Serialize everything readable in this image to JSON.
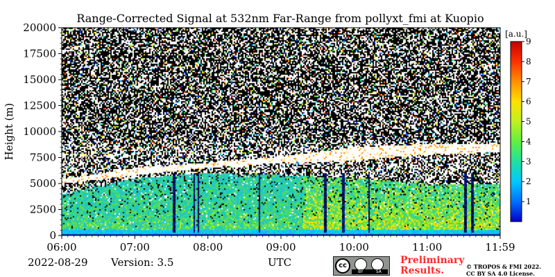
{
  "chart_data": {
    "type": "heatmap",
    "title": "Range-Corrected Signal at 532nm Far-Range from pollyxt_fmi at Kuopio",
    "xlabel": "UTC",
    "ylabel": "Height (m)",
    "x_ticks": [
      "06:00",
      "07:00",
      "08:00",
      "09:00",
      "10:00",
      "11:00",
      "11:59"
    ],
    "y_ticks": [
      0,
      2500,
      5000,
      7500,
      10000,
      12500,
      15000,
      17500,
      20000
    ],
    "ylim": [
      0,
      20000
    ],
    "colorbar": {
      "unit": "[a.u.]",
      "range": [
        0,
        9
      ],
      "ticks": [
        1,
        2,
        3,
        4,
        5,
        6,
        7,
        8,
        9
      ],
      "colors": [
        "#0000c8",
        "#0070ff",
        "#00c8ff",
        "#20e0a0",
        "#60f040",
        "#c0f020",
        "#ffe000",
        "#ff9000",
        "#ff3000",
        "#c80000"
      ]
    },
    "cloud_layer": {
      "start_time": "06:00",
      "end_time": "11:59",
      "base_m_at_ticks": [
        5000,
        5800,
        6500,
        7000,
        7200,
        7800,
        8000
      ],
      "top_m_at_ticks": [
        5400,
        6500,
        7000,
        7600,
        8500,
        8800,
        8800
      ]
    },
    "aerosol_top_m_at_ticks": [
      4000,
      5500,
      6000,
      5800,
      5500,
      5000,
      5000
    ]
  },
  "footer": {
    "date": "2022-08-29",
    "version": "Version: 3.5",
    "x_unit": "UTC",
    "preliminary": "Preliminary",
    "results": "Results.",
    "copyright_line1": "© TROPOS & FMI 2022.",
    "copyright_line2": "CC BY SA 4.0 License.",
    "license_icon": "cc-by-sa-badge"
  },
  "colors": {
    "preliminary_text": "#ff2a2a"
  }
}
